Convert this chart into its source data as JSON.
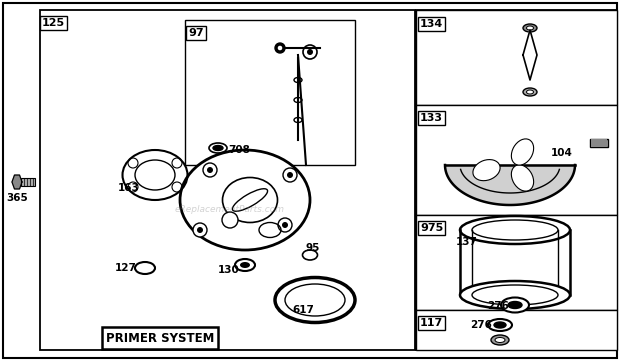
{
  "bg_color": "#ffffff",
  "watermark": "eReplacementParts.com",
  "figsize": [
    6.2,
    3.61
  ],
  "dpi": 100
}
